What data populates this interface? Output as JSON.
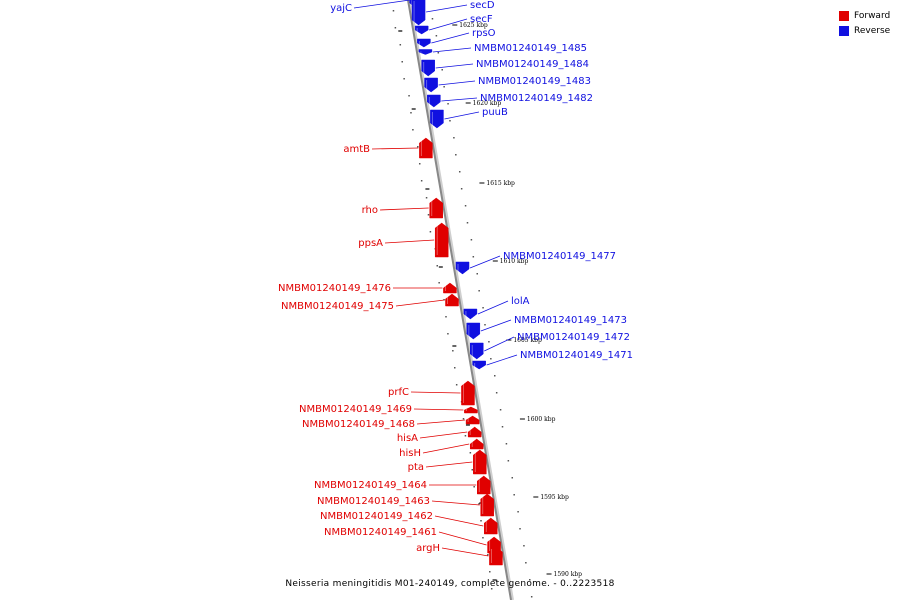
{
  "colors": {
    "forward": "#e00000",
    "reverse": "#1010e0",
    "axis": "#888888"
  },
  "legend": [
    {
      "label": "Forward",
      "color": "#e00000"
    },
    {
      "label": "Reverse",
      "color": "#1010e0"
    }
  ],
  "caption": "Neisseria meningitidis M01-240149, complete genome. - 0..2223518",
  "ticks": [
    "1625 kbp",
    "1620 kbp",
    "1615 kbp",
    "1610 kbp",
    "1605 kbp",
    "1600 kbp",
    "1595 kbp",
    "1590 kbp"
  ],
  "genes": [
    {
      "name": "yajC",
      "strand": "reverse"
    },
    {
      "name": "secD",
      "strand": "reverse"
    },
    {
      "name": "secF",
      "strand": "reverse"
    },
    {
      "name": "rpsO",
      "strand": "reverse"
    },
    {
      "name": "NMBM01240149_1485",
      "strand": "reverse"
    },
    {
      "name": "NMBM01240149_1484",
      "strand": "reverse"
    },
    {
      "name": "NMBM01240149_1483",
      "strand": "reverse"
    },
    {
      "name": "NMBM01240149_1482",
      "strand": "reverse"
    },
    {
      "name": "puuB",
      "strand": "reverse"
    },
    {
      "name": "amtB",
      "strand": "forward"
    },
    {
      "name": "rho",
      "strand": "forward"
    },
    {
      "name": "ppsA",
      "strand": "forward"
    },
    {
      "name": "NMBM01240149_1477",
      "strand": "reverse"
    },
    {
      "name": "NMBM01240149_1476",
      "strand": "forward"
    },
    {
      "name": "NMBM01240149_1475",
      "strand": "forward"
    },
    {
      "name": "lolA",
      "strand": "reverse"
    },
    {
      "name": "NMBM01240149_1473",
      "strand": "reverse"
    },
    {
      "name": "NMBM01240149_1472",
      "strand": "reverse"
    },
    {
      "name": "NMBM01240149_1471",
      "strand": "reverse"
    },
    {
      "name": "prfC",
      "strand": "forward"
    },
    {
      "name": "NMBM01240149_1469",
      "strand": "forward"
    },
    {
      "name": "NMBM01240149_1468",
      "strand": "forward"
    },
    {
      "name": "hisA",
      "strand": "forward"
    },
    {
      "name": "hisH",
      "strand": "forward"
    },
    {
      "name": "pta",
      "strand": "forward"
    },
    {
      "name": "NMBM01240149_1464",
      "strand": "forward"
    },
    {
      "name": "NMBM01240149_1463",
      "strand": "forward"
    },
    {
      "name": "NMBM01240149_1462",
      "strand": "forward"
    },
    {
      "name": "NMBM01240149_1461",
      "strand": "forward"
    },
    {
      "name": "argH",
      "strand": "forward"
    }
  ]
}
